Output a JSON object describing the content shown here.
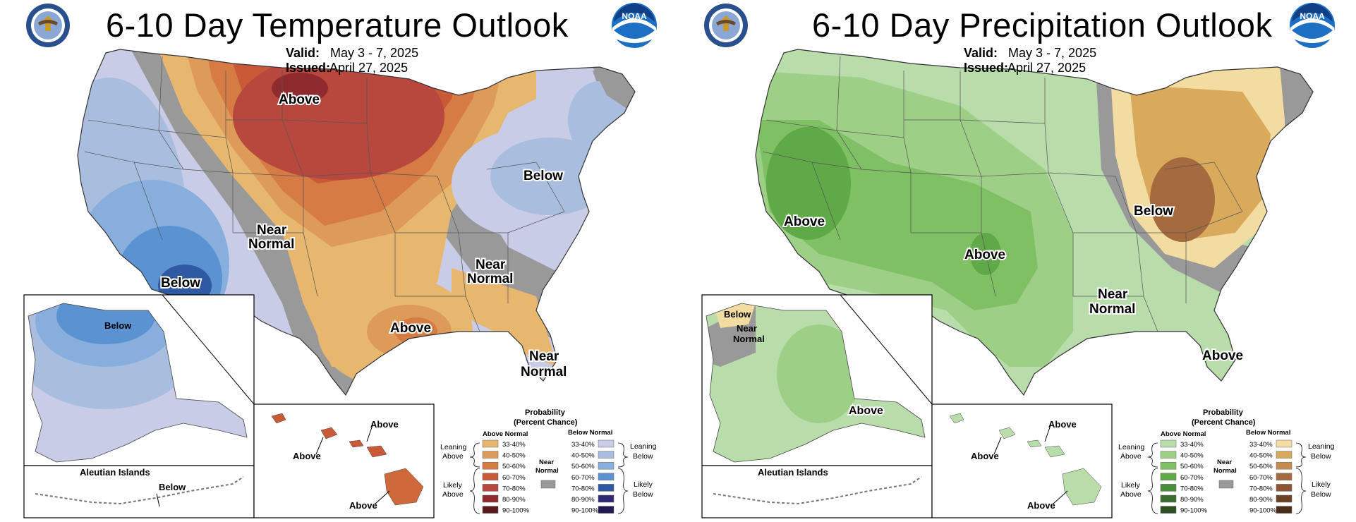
{
  "panels": [
    {
      "title": "6-10 Day Temperature Outlook",
      "valid_label": "Valid:",
      "valid_value": "May 3 - 7, 2025",
      "issued_label": "Issued:",
      "issued_value": "April 27, 2025",
      "map_labels": [
        "Above",
        "Below",
        "Near Normal",
        "Below",
        "Near Normal",
        "Above",
        "Near Normal"
      ],
      "alaska_labels": [
        "Below"
      ],
      "aleutian_title": "Aleutian Islands",
      "aleutian_label": "Below",
      "hawaii_labels": [
        "Above",
        "Above",
        "Above"
      ],
      "legend": {
        "title_line1": "Probability",
        "title_line2": "(Percent Chance)",
        "left_header": "Above Normal",
        "right_header": "Below Normal",
        "near_normal": "Near Normal",
        "leaning_left": "Leaning Above",
        "likely_left": "Likely Above",
        "leaning_right": "Leaning Below",
        "likely_right": "Likely Below",
        "ranges": [
          "33-40%",
          "40-50%",
          "50-60%",
          "60-70%",
          "70-80%",
          "80-90%",
          "90-100%"
        ],
        "left_colors": [
          "#e8b76f",
          "#de9a58",
          "#d67b44",
          "#c85a38",
          "#b8473d",
          "#8f2b2e",
          "#5c1a1b"
        ],
        "right_colors": [
          "#c9cce6",
          "#a9bedf",
          "#87aedc",
          "#5b93d2",
          "#2f5aa3",
          "#2f2a73",
          "#211b52"
        ]
      }
    },
    {
      "title": "6-10 Day Precipitation Outlook",
      "valid_label": "Valid:",
      "valid_value": "May 3 - 7, 2025",
      "issued_label": "Issued:",
      "issued_value": "April 27, 2025",
      "map_labels": [
        "Above",
        "Above",
        "Below",
        "Near Normal",
        "Above"
      ],
      "alaska_labels": [
        "Below",
        "Near Normal",
        "Above"
      ],
      "aleutian_title": "Aleutian Islands",
      "aleutian_label": "",
      "hawaii_labels": [
        "Above",
        "Above",
        "Above"
      ],
      "legend": {
        "title_line1": "Probability",
        "title_line2": "(Percent Chance)",
        "left_header": "Above Normal",
        "right_header": "Below Normal",
        "near_normal": "Near Normal",
        "leaning_left": "Leaning Above",
        "likely_left": "Likely Above",
        "leaning_right": "Leaning Below",
        "likely_right": "Likely Below",
        "ranges": [
          "33-40%",
          "40-50%",
          "50-60%",
          "60-70%",
          "70-80%",
          "80-90%",
          "90-100%"
        ],
        "left_colors": [
          "#b9dcab",
          "#9dcf87",
          "#7fc064",
          "#5fa948",
          "#4a8d3b",
          "#3b6f2f",
          "#2c5223"
        ],
        "right_colors": [
          "#f3dca1",
          "#d9aa5c",
          "#c58b4c",
          "#a56b3e",
          "#8d5632",
          "#6c4225",
          "#4c2d18"
        ]
      }
    }
  ],
  "colors": {
    "near_normal": "#999999",
    "land": "#ffffff",
    "boundary": "#555555"
  }
}
